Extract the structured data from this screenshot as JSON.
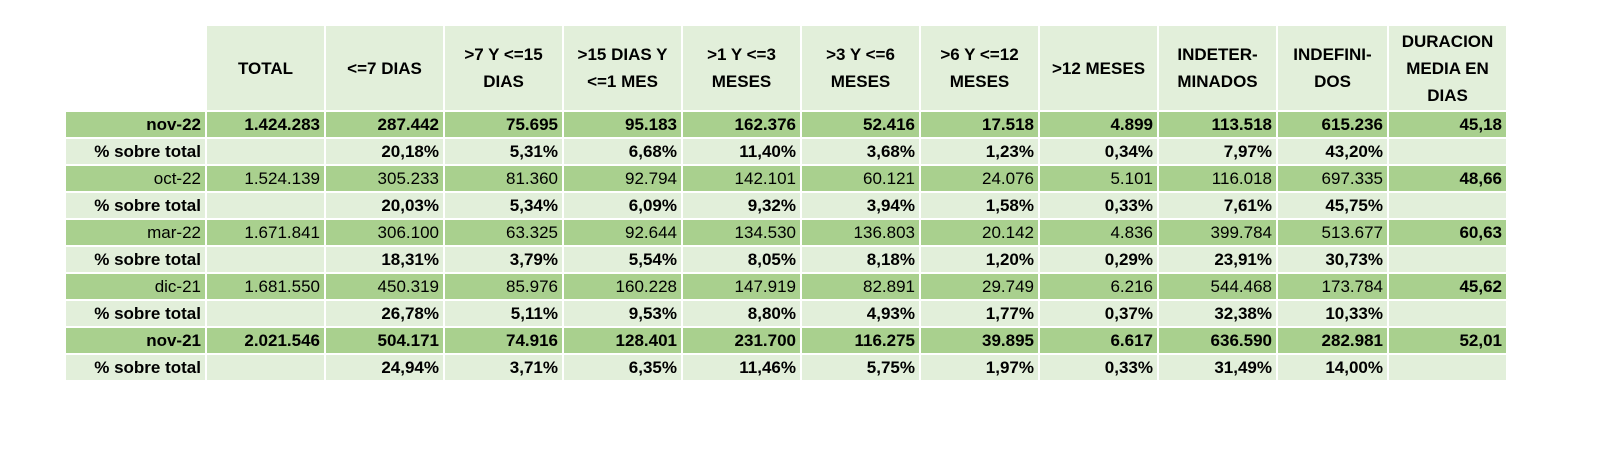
{
  "headers": [
    "TOTAL",
    "<=7 DIAS",
    ">7 Y <=15 DIAS",
    ">15 DIAS Y <=1 MES",
    ">1 Y <=3 MESES",
    ">3 Y <=6 MESES",
    ">6 Y <=12 MESES",
    ">12 MESES",
    "INDETER-MINADOS",
    "INDEFINI-DOS",
    "DURACION MEDIA EN DIAS"
  ],
  "rows": [
    {
      "type": "value",
      "bold": true,
      "label": "nov-22",
      "cells": [
        "1.424.283",
        "287.442",
        "75.695",
        "95.183",
        "162.376",
        "52.416",
        "17.518",
        "4.899",
        "113.518",
        "615.236",
        "45,18"
      ]
    },
    {
      "type": "pct",
      "bold": true,
      "label": "% sobre total",
      "cells": [
        "",
        "20,18%",
        "5,31%",
        "6,68%",
        "11,40%",
        "3,68%",
        "1,23%",
        "0,34%",
        "7,97%",
        "43,20%",
        ""
      ]
    },
    {
      "type": "value",
      "bold": false,
      "label": "oct-22",
      "cells": [
        "1.524.139",
        "305.233",
        "81.360",
        "92.794",
        "142.101",
        "60.121",
        "24.076",
        "5.101",
        "116.018",
        "697.335",
        "48,66"
      ]
    },
    {
      "type": "pct",
      "bold": true,
      "label": "% sobre total",
      "cells": [
        "",
        "20,03%",
        "5,34%",
        "6,09%",
        "9,32%",
        "3,94%",
        "1,58%",
        "0,33%",
        "7,61%",
        "45,75%",
        ""
      ]
    },
    {
      "type": "value",
      "bold": false,
      "label": "mar-22",
      "cells": [
        "1.671.841",
        "306.100",
        "63.325",
        "92.644",
        "134.530",
        "136.803",
        "20.142",
        "4.836",
        "399.784",
        "513.677",
        "60,63"
      ]
    },
    {
      "type": "pct",
      "bold": true,
      "label": "% sobre total",
      "cells": [
        "",
        "18,31%",
        "3,79%",
        "5,54%",
        "8,05%",
        "8,18%",
        "1,20%",
        "0,29%",
        "23,91%",
        "30,73%",
        ""
      ]
    },
    {
      "type": "value",
      "bold": false,
      "label": "dic-21",
      "cells": [
        "1.681.550",
        "450.319",
        "85.976",
        "160.228",
        "147.919",
        "82.891",
        "29.749",
        "6.216",
        "544.468",
        "173.784",
        "45,62"
      ]
    },
    {
      "type": "pct",
      "bold": true,
      "label": "% sobre total",
      "cells": [
        "",
        "26,78%",
        "5,11%",
        "9,53%",
        "8,80%",
        "4,93%",
        "1,77%",
        "0,37%",
        "32,38%",
        "10,33%",
        ""
      ]
    },
    {
      "type": "value",
      "bold": true,
      "label": "nov-21",
      "cells": [
        "2.021.546",
        "504.171",
        "74.916",
        "128.401",
        "231.700",
        "116.275",
        "39.895",
        "6.617",
        "636.590",
        "282.981",
        "52,01"
      ]
    },
    {
      "type": "pct",
      "bold": true,
      "label": "% sobre total",
      "cells": [
        "",
        "24,94%",
        "3,71%",
        "6,35%",
        "11,46%",
        "5,75%",
        "1,97%",
        "0,33%",
        "31,49%",
        "14,00%",
        ""
      ]
    }
  ],
  "colors": {
    "dark_green": "#a9d08e",
    "light_green": "#e2efda"
  }
}
